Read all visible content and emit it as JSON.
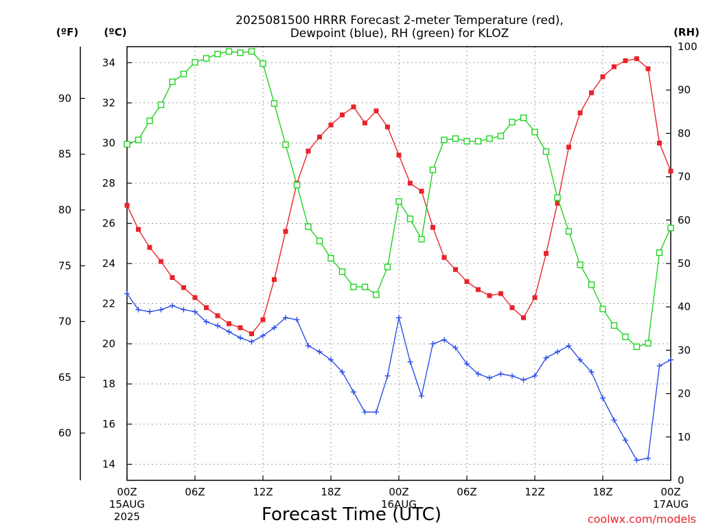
{
  "chart_data": {
    "type": "line",
    "title_line1": "2025081500 HRRR Forecast 2-meter Temperature (red),",
    "title_line2": "Dewpoint (blue), RH (green) for KLOZ",
    "xlabel": "Forecast Time (UTC)",
    "watermark": "coolwx.com/models",
    "axes": {
      "fahrenheit_label": "(ºF)",
      "celsius_label": "(ºC)",
      "rh_label": "(RH)",
      "celsius_range": [
        13.2,
        34.8
      ],
      "rh_range": [
        0,
        100
      ],
      "celsius_ticks": [
        "14",
        "16",
        "18",
        "20",
        "22",
        "24",
        "26",
        "28",
        "30",
        "32",
        "34"
      ],
      "fahrenheit_ticks": [
        "60",
        "65",
        "70",
        "75",
        "80",
        "85",
        "90"
      ],
      "rh_ticks": [
        "0",
        "10",
        "20",
        "30",
        "40",
        "50",
        "60",
        "70",
        "80",
        "90",
        "100"
      ],
      "x_range_hours": [
        0,
        48
      ],
      "x_ticks": [
        {
          "hour": 0,
          "lines": [
            "00Z",
            "15AUG",
            "2025"
          ]
        },
        {
          "hour": 6,
          "lines": [
            "06Z"
          ]
        },
        {
          "hour": 12,
          "lines": [
            "12Z"
          ]
        },
        {
          "hour": 18,
          "lines": [
            "18Z"
          ]
        },
        {
          "hour": 24,
          "lines": [
            "00Z",
            "16AUG"
          ]
        },
        {
          "hour": 30,
          "lines": [
            "06Z"
          ]
        },
        {
          "hour": 36,
          "lines": [
            "12Z"
          ]
        },
        {
          "hour": 42,
          "lines": [
            "18Z"
          ]
        },
        {
          "hour": 48,
          "lines": [
            "00Z",
            "17AUG"
          ]
        }
      ],
      "grid": true
    },
    "x_hours": [
      0,
      1,
      2,
      3,
      4,
      5,
      6,
      7,
      8,
      9,
      10,
      11,
      12,
      13,
      14,
      15,
      16,
      17,
      18,
      19,
      20,
      21,
      22,
      23,
      24,
      25,
      26,
      27,
      28,
      29,
      30,
      31,
      32,
      33,
      34,
      35,
      36,
      37,
      38,
      39,
      40,
      41,
      42,
      43,
      44,
      45,
      46,
      47,
      48
    ],
    "series": [
      {
        "name": "2-meter Temperature",
        "color": "#e8242a",
        "axis": "celsius",
        "marker": "filled-square",
        "values": [
          26.9,
          25.7,
          24.8,
          24.1,
          23.3,
          22.8,
          22.3,
          21.8,
          21.4,
          21.0,
          20.8,
          20.5,
          21.2,
          23.2,
          25.6,
          28.0,
          29.6,
          30.3,
          30.9,
          31.4,
          31.8,
          31.0,
          31.6,
          30.8,
          29.4,
          28.0,
          27.6,
          25.8,
          24.3,
          23.7,
          23.1,
          22.7,
          22.4,
          22.5,
          21.8,
          21.3,
          22.3,
          24.5,
          27.0,
          29.8,
          31.5,
          32.5,
          33.3,
          33.8,
          34.1,
          34.2,
          33.7,
          30.0,
          28.6
        ]
      },
      {
        "name": "Dewpoint",
        "color": "#2b4de8",
        "axis": "celsius",
        "marker": "plus",
        "values": [
          22.5,
          21.7,
          21.6,
          21.7,
          21.9,
          21.7,
          21.6,
          21.1,
          20.9,
          20.6,
          20.3,
          20.1,
          20.4,
          20.8,
          21.3,
          21.2,
          19.9,
          19.6,
          19.2,
          18.6,
          17.6,
          16.6,
          16.6,
          18.4,
          21.3,
          19.1,
          17.4,
          20.0,
          20.2,
          19.8,
          19.0,
          18.5,
          18.3,
          18.5,
          18.4,
          18.2,
          18.4,
          19.3,
          19.6,
          19.9,
          19.2,
          18.6,
          17.3,
          16.2,
          15.2,
          14.2,
          14.3,
          18.9,
          19.2
        ]
      },
      {
        "name": "RH",
        "color": "#1fd21f",
        "axis": "rh",
        "marker": "open-square",
        "values": [
          77.5,
          78.5,
          82.9,
          86.6,
          91.9,
          93.7,
          96.4,
          97.3,
          98.3,
          98.9,
          98.6,
          98.9,
          96.1,
          86.9,
          77.4,
          68.1,
          58.5,
          55.2,
          51.2,
          48.1,
          44.6,
          44.6,
          42.8,
          49.2,
          64.3,
          60.3,
          55.6,
          71.6,
          78.5,
          78.8,
          78.2,
          78.2,
          78.8,
          79.4,
          82.6,
          83.6,
          80.3,
          75.8,
          65.2,
          57.4,
          49.7,
          45.1,
          39.5,
          35.7,
          33.1,
          30.8,
          31.6,
          52.5,
          58.2
        ]
      }
    ]
  }
}
